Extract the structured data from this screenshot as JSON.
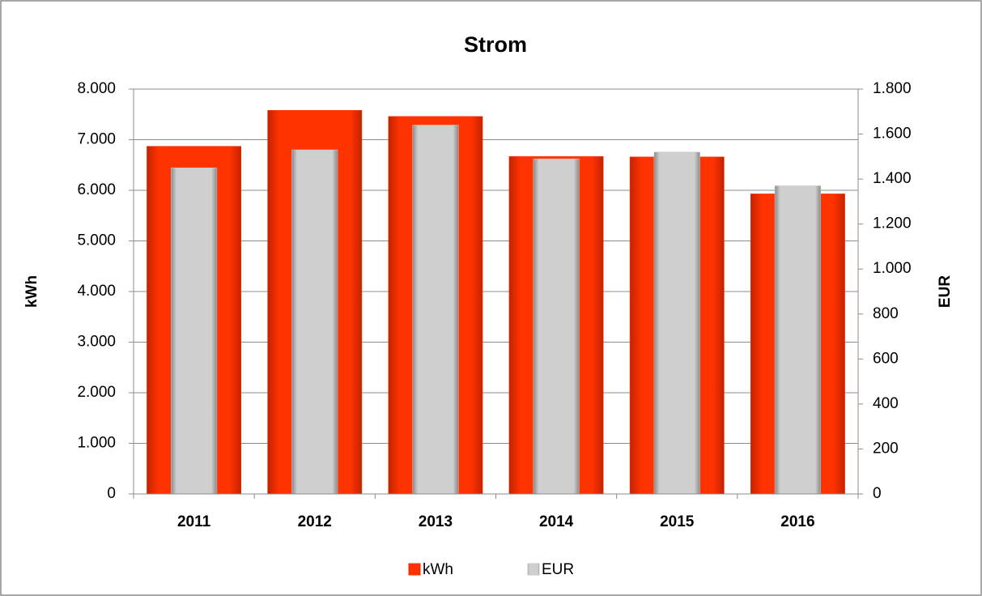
{
  "chart_data": {
    "type": "bar",
    "title": "Strom",
    "categories": [
      "2011",
      "2012",
      "2013",
      "2014",
      "2015",
      "2016"
    ],
    "series": [
      {
        "name": "kWh",
        "color": "#ff3300",
        "values": [
          6870,
          7580,
          7460,
          6670,
          6660,
          5930
        ]
      },
      {
        "name": "EUR",
        "color": "#c8c8c8",
        "axis": "y2",
        "values": [
          1450,
          1530,
          1640,
          1490,
          1520,
          1370
        ]
      }
    ],
    "ylabel": "kWh",
    "y2label": "EUR",
    "ylim": [
      0,
      8000
    ],
    "yticks": [
      {
        "value": 0,
        "label": "0"
      },
      {
        "value": 1000,
        "label": "1.000"
      },
      {
        "value": 2000,
        "label": "2.000"
      },
      {
        "value": 3000,
        "label": "3.000"
      },
      {
        "value": 4000,
        "label": "4.000"
      },
      {
        "value": 5000,
        "label": "5.000"
      },
      {
        "value": 6000,
        "label": "6.000"
      },
      {
        "value": 7000,
        "label": "7.000"
      },
      {
        "value": 8000,
        "label": "8.000"
      }
    ],
    "y2lim": [
      0,
      1800
    ],
    "y2ticks": [
      0,
      200,
      400,
      600,
      800,
      {
        "value": 1000,
        "label": "1.000"
      },
      {
        "value": 1200,
        "label": "1.200"
      },
      {
        "value": 1400,
        "label": "1.400"
      },
      {
        "value": 1600,
        "label": "1.600"
      },
      {
        "value": 1800,
        "label": "1.800"
      }
    ],
    "grid": true,
    "legend": "bottom"
  }
}
